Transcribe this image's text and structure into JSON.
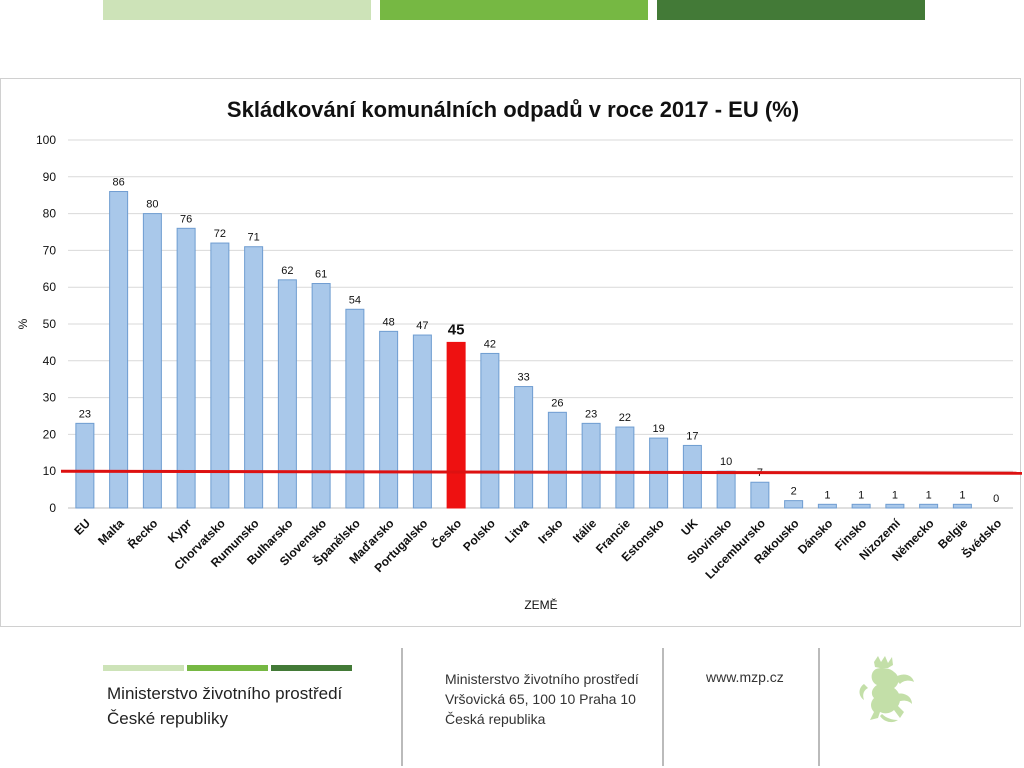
{
  "colors": {
    "stripe_light": "#cde3b8",
    "stripe_mid": "#76b843",
    "stripe_dark": "#437a37",
    "bar_fill": "#a9c8ea",
    "bar_stroke": "#6f9dd1",
    "highlight_bar": "#ee1111",
    "threshold_line": "#dd1111",
    "lion": "#c3dfa8"
  },
  "chart_data": {
    "type": "bar",
    "title": "Skládkování komunálních odpadů v roce 2017  - EU (%)",
    "xlabel": "ZEMĚ",
    "ylabel": "%",
    "ylim": [
      0,
      100
    ],
    "yticks": [
      0,
      10,
      20,
      30,
      40,
      50,
      60,
      70,
      80,
      90,
      100
    ],
    "grid": true,
    "categories": [
      "EU",
      "Malta",
      "Řecko",
      "Kypr",
      "Chorvatsko",
      "Rumunsko",
      "Bulharsko",
      "Slovensko",
      "Španělsko",
      "Maďarsko",
      "Portugalsko",
      "Česko",
      "Polsko",
      "Litva",
      "Irsko",
      "Itálie",
      "Francie",
      "Estonsko",
      "UK",
      "Slovinsko",
      "Lucembursko",
      "Rakousko",
      "Dánsko",
      "Finsko",
      "Nizozemí",
      "Německo",
      "Belgie",
      "Švédsko"
    ],
    "values": [
      23,
      86,
      80,
      76,
      72,
      71,
      62,
      61,
      54,
      48,
      47,
      45,
      42,
      33,
      26,
      23,
      22,
      19,
      17,
      10,
      7,
      2,
      1,
      1,
      1,
      1,
      1,
      0
    ],
    "highlight_category": "Česko",
    "threshold": 10
  },
  "footer": {
    "ministry_line1": "Ministerstvo životního prostředí",
    "ministry_line2": "České republiky",
    "address_line1": "Ministerstvo životního prostředí",
    "address_line2": "Vršovická 65, 100 10  Praha 10",
    "address_line3": "Česká republika",
    "website": "www.mzp.cz",
    "logo_icon": "lion-icon"
  }
}
